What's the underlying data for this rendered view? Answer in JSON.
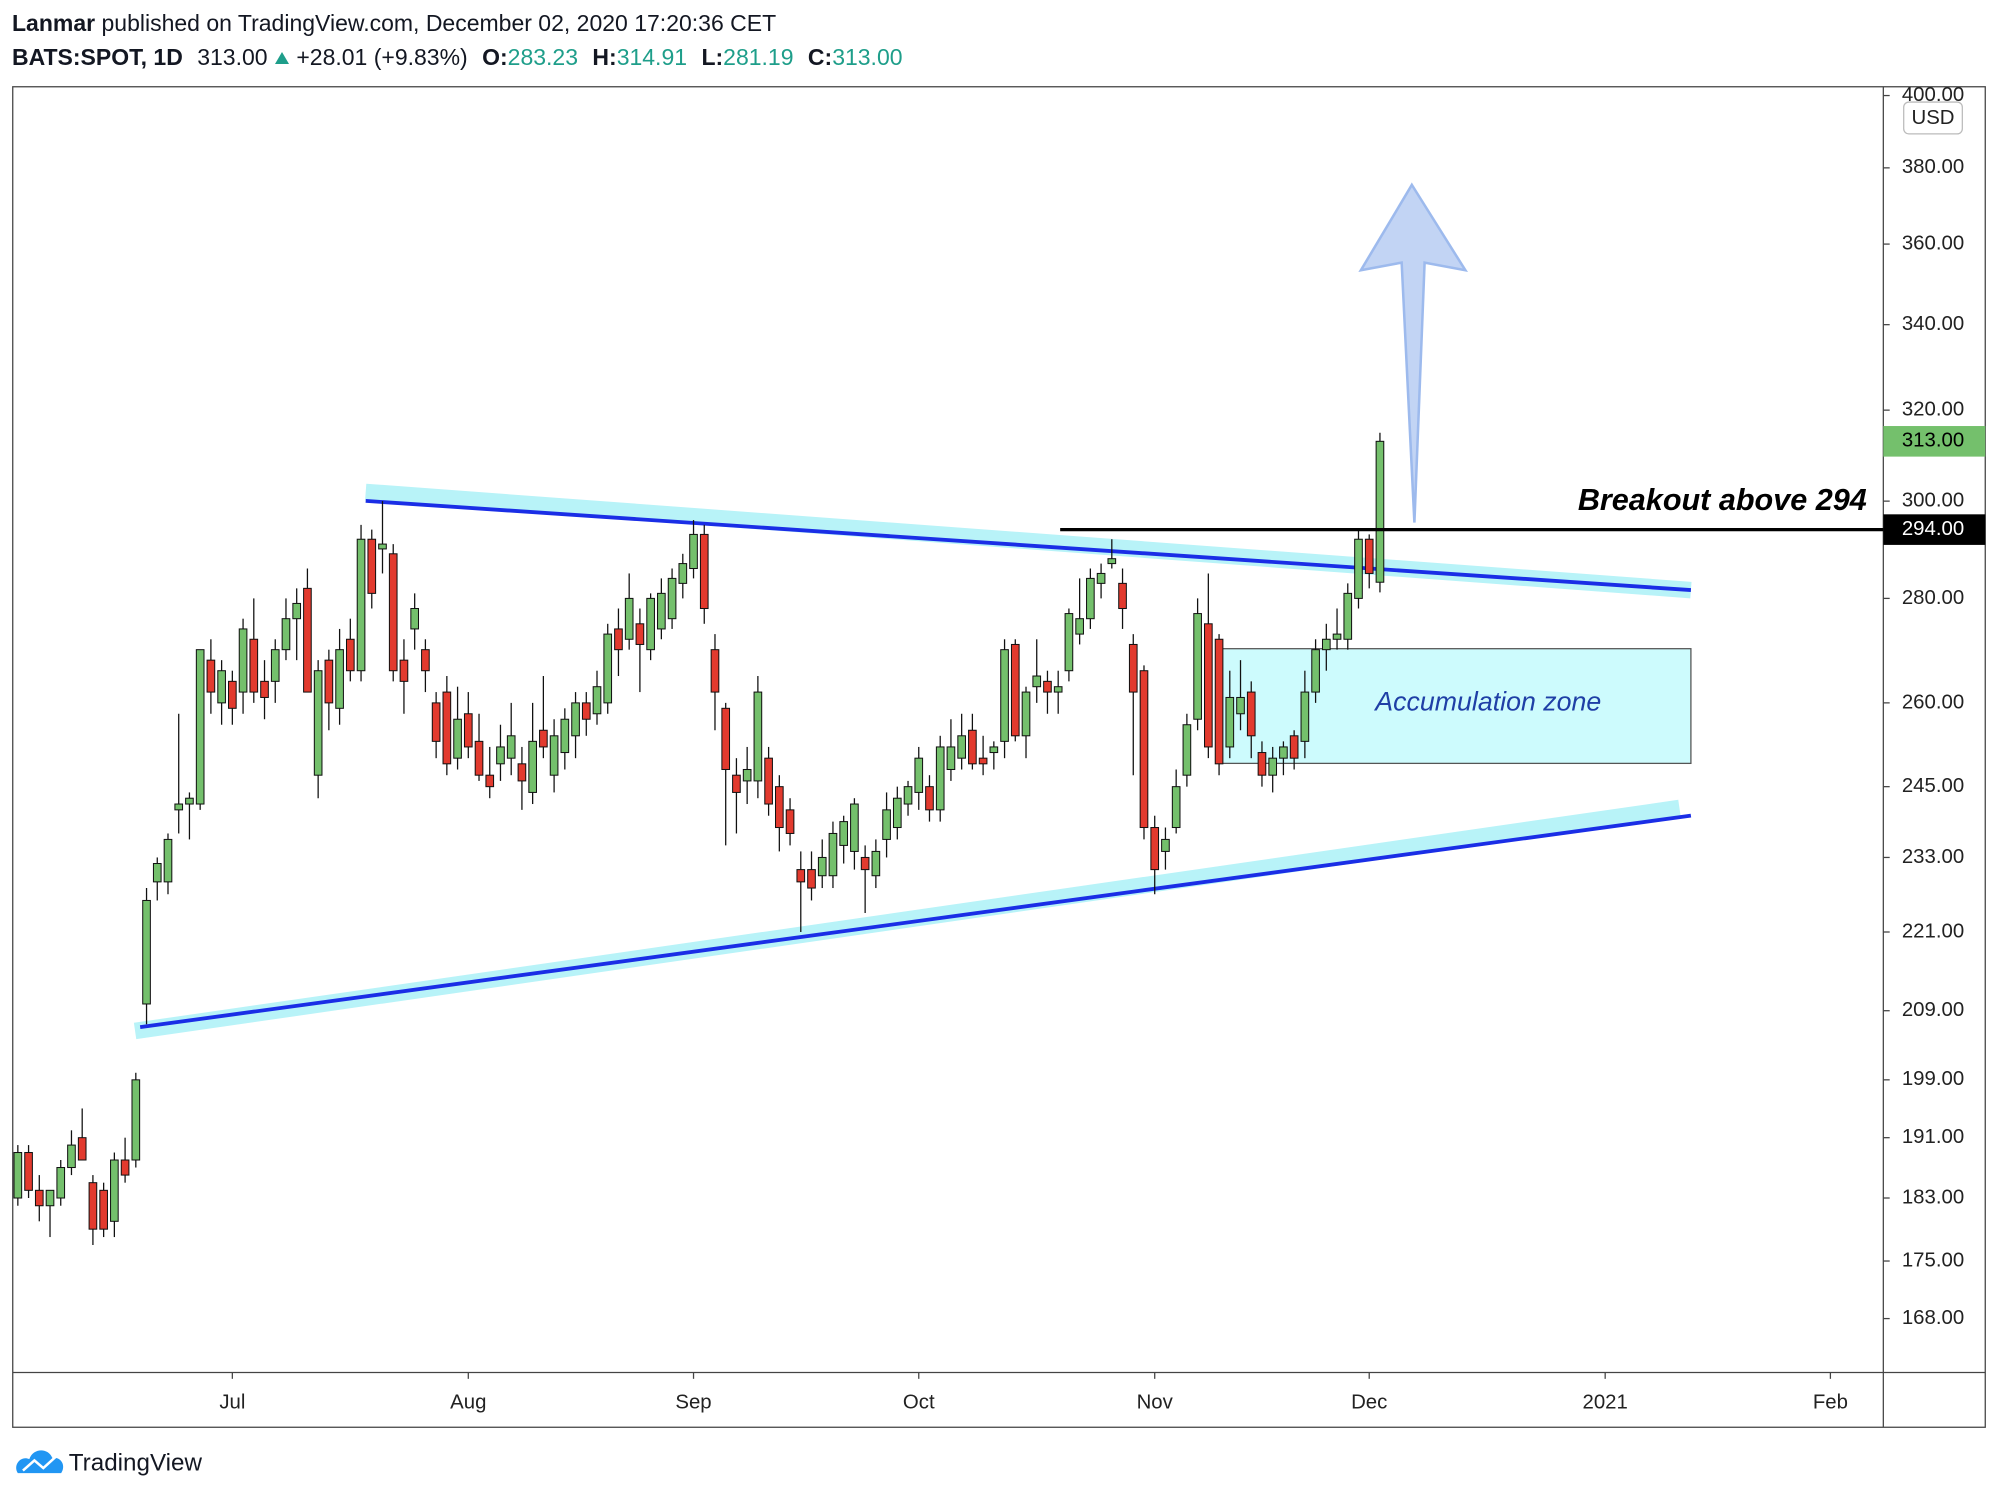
{
  "header": {
    "author": "Lanmar",
    "published": "published on TradingView.com, December 02, 2020 17:20:36 CET"
  },
  "chart_data": {
    "type": "candlestick",
    "symbol": "BATS:SPOT, 1D",
    "last": "313.00",
    "change": "+28.01 (+9.83%)",
    "ohlc_labels": [
      "O:",
      "H:",
      "L:",
      "C:"
    ],
    "ohlc_values": [
      "283.23",
      "314.91",
      "281.19",
      "313.00"
    ],
    "currency": "USD",
    "categories": [
      null,
      null,
      null,
      null,
      null,
      null,
      null,
      null,
      null,
      null,
      null,
      null,
      null,
      null,
      null,
      null,
      null,
      null,
      null,
      null,
      "Jul",
      null,
      null,
      null,
      null,
      null,
      null,
      null,
      null,
      null,
      null,
      null,
      null,
      null,
      null,
      null,
      null,
      null,
      null,
      null,
      null,
      null,
      "Aug",
      null,
      null,
      null,
      null,
      null,
      null,
      null,
      null,
      null,
      null,
      null,
      null,
      null,
      null,
      null,
      null,
      null,
      null,
      null,
      null,
      "Sep",
      null,
      null,
      null,
      null,
      null,
      null,
      null,
      null,
      null,
      null,
      null,
      null,
      null,
      null,
      null,
      null,
      null,
      null,
      null,
      null,
      "Oct",
      null,
      null,
      null,
      null,
      null,
      null,
      null,
      null,
      null,
      null,
      null,
      null,
      null,
      null,
      null,
      null,
      null,
      null,
      null,
      null,
      null,
      "Nov",
      null,
      null,
      null,
      null,
      null,
      null,
      null,
      null,
      null,
      null,
      null,
      null,
      null,
      null,
      null,
      null,
      null,
      null,
      null,
      "Dec",
      null,
      null,
      null,
      null,
      null,
      null,
      null,
      null,
      null,
      null,
      null,
      null,
      null,
      null,
      null,
      null,
      null,
      null,
      null,
      null,
      null,
      "2021",
      null,
      null,
      null,
      null,
      null,
      null,
      null,
      null,
      null,
      null,
      null,
      null,
      null,
      null,
      null,
      null,
      null,
      null,
      null,
      null,
      "Feb",
      null,
      null,
      null,
      null
    ],
    "open": [
      183,
      189,
      184,
      182,
      183,
      187,
      191,
      185,
      184,
      180,
      188,
      188,
      210,
      229,
      229,
      241,
      242,
      242,
      268,
      260,
      264,
      262,
      272,
      264,
      264,
      270,
      276,
      282,
      247,
      268,
      259,
      272,
      266,
      292,
      290,
      289,
      268,
      274,
      270,
      260,
      262,
      250,
      258,
      253,
      247,
      249,
      250,
      249,
      244,
      255,
      247,
      251,
      254,
      260,
      258,
      260,
      274,
      272,
      275,
      270,
      274,
      276,
      283,
      286,
      293,
      270,
      259,
      247,
      246,
      246,
      250,
      245,
      241,
      231,
      231,
      230,
      230,
      235,
      234,
      233,
      230,
      236,
      238,
      242,
      244,
      245,
      241,
      248,
      250,
      255,
      250,
      251,
      253,
      271,
      254,
      263,
      264,
      262,
      266,
      273,
      276,
      283,
      287,
      283,
      271,
      266,
      238,
      234,
      238,
      247,
      257,
      275,
      272,
      252,
      258,
      262,
      251,
      247,
      250,
      254,
      253,
      262,
      270,
      272,
      272,
      280,
      292,
      283.23,
      null,
      null,
      null,
      null,
      null,
      null,
      null,
      null,
      null,
      null,
      null,
      null,
      null,
      null,
      null,
      null,
      null,
      null,
      null,
      null,
      null,
      null,
      null,
      null,
      null,
      null,
      null,
      null,
      null,
      null,
      null,
      null,
      null,
      null,
      null,
      null,
      null,
      null,
      null,
      null,
      null,
      null,
      null,
      null,
      null,
      null
    ],
    "high": [
      190,
      190,
      186,
      184,
      188,
      192,
      195,
      186,
      185,
      189,
      191,
      200,
      228,
      233,
      237,
      258,
      244,
      270,
      272,
      268,
      266,
      276,
      280,
      268,
      272,
      280,
      282,
      286,
      268,
      270,
      274,
      276,
      295,
      294,
      300,
      291,
      272,
      281,
      272,
      262,
      265,
      263,
      262,
      258,
      252,
      256,
      260,
      252,
      260,
      265,
      257,
      259,
      262,
      262,
      266,
      275,
      278,
      285,
      278,
      281,
      284,
      286,
      289,
      296,
      295,
      273,
      260,
      250,
      252,
      265,
      252,
      247,
      243,
      234,
      234,
      236,
      239,
      240,
      243,
      235,
      236,
      244,
      245,
      246,
      252,
      247,
      254,
      257,
      258,
      258,
      254,
      253,
      272,
      272,
      263,
      272,
      266,
      266,
      278,
      284,
      286,
      287,
      292,
      286,
      273,
      267,
      240,
      238,
      248,
      258,
      280,
      285,
      273,
      266,
      268,
      264,
      253,
      252,
      253,
      255,
      266,
      272,
      275,
      278,
      283,
      294,
      293,
      314.91,
      null,
      null,
      null,
      null,
      null,
      null,
      null,
      null,
      null,
      null,
      null,
      null,
      null,
      null,
      null,
      null,
      null,
      null,
      null,
      null,
      null,
      null,
      null,
      null,
      null,
      null,
      null,
      null,
      null,
      null,
      null,
      null,
      null,
      null,
      null,
      null,
      null,
      null,
      null,
      null,
      null,
      null,
      null,
      null,
      null,
      null
    ],
    "low": [
      182,
      183,
      180,
      178,
      182,
      186,
      188,
      177,
      178,
      178,
      185,
      187,
      207,
      226,
      227,
      237,
      236,
      241,
      258,
      256,
      256,
      258,
      260,
      257,
      260,
      268,
      268,
      262,
      243,
      255,
      256,
      264,
      264,
      278,
      285,
      264,
      258,
      270,
      262,
      250,
      247,
      248,
      250,
      246,
      243,
      246,
      247,
      241,
      242,
      250,
      244,
      248,
      250,
      254,
      256,
      258,
      265,
      270,
      262,
      268,
      272,
      274,
      280,
      284,
      275,
      255,
      235,
      237,
      242,
      243,
      240,
      234,
      235,
      221,
      226,
      228,
      228,
      232,
      231,
      224,
      228,
      233,
      236,
      240,
      241,
      239,
      239,
      246,
      248,
      248,
      247,
      248,
      250,
      253,
      250,
      260,
      258,
      258,
      264,
      271,
      274,
      280,
      286,
      274,
      247,
      236,
      227,
      231,
      237,
      245,
      255,
      250,
      247,
      250,
      255,
      250,
      245,
      244,
      247,
      248,
      250,
      260,
      266,
      270,
      270,
      278,
      282,
      281.19,
      null,
      null,
      null,
      null,
      null,
      null,
      null,
      null,
      null,
      null,
      null,
      null,
      null,
      null,
      null,
      null,
      null,
      null,
      null,
      null,
      null,
      null,
      null,
      null,
      null,
      null,
      null,
      null,
      null,
      null,
      null,
      null,
      null,
      null,
      null,
      null,
      null,
      null,
      null,
      null,
      null,
      null,
      null,
      null,
      null,
      null
    ],
    "close": [
      189,
      184,
      182,
      184,
      187,
      190,
      188,
      179,
      179,
      188,
      186,
      199,
      226,
      232,
      236,
      242,
      243,
      270,
      262,
      266,
      259,
      274,
      262,
      261,
      270,
      276,
      279,
      262,
      266,
      260,
      270,
      266,
      292,
      281,
      291,
      266,
      264,
      278,
      266,
      253,
      249,
      257,
      252,
      247,
      245,
      252,
      254,
      246,
      253,
      252,
      254,
      257,
      260,
      257,
      263,
      273,
      270,
      280,
      271,
      280,
      281,
      284,
      287,
      293,
      278,
      262,
      248,
      244,
      248,
      262,
      242,
      238,
      237,
      229,
      228,
      233,
      237,
      239,
      242,
      231,
      234,
      241,
      243,
      245,
      250,
      241,
      252,
      252,
      254,
      249,
      249,
      252,
      270,
      254,
      262,
      265,
      262,
      263,
      277,
      276,
      284,
      285,
      288,
      278,
      262,
      238,
      231,
      236,
      245,
      256,
      277,
      252,
      249,
      261,
      261,
      254,
      247,
      250,
      252,
      250,
      262,
      270,
      272,
      273,
      281,
      292,
      285,
      313,
      null,
      null,
      null,
      null,
      null,
      null,
      null,
      null,
      null,
      null,
      null,
      null,
      null,
      null,
      null,
      null,
      null,
      null,
      null,
      null,
      null,
      null,
      null,
      null,
      null,
      null,
      null,
      null,
      null,
      null,
      null,
      null,
      null,
      null,
      null,
      null,
      null,
      null,
      null,
      null,
      null,
      null,
      null,
      null,
      null,
      null
    ],
    "up_color": "#74c06c",
    "down_color": "#e23a2e",
    "log_scale": true,
    "grid": false,
    "ylim": [
      161.7,
      402.5
    ],
    "yticks": [
      {
        "value": 168,
        "label": "168.00"
      },
      {
        "value": 175,
        "label": "175.00"
      },
      {
        "value": 183,
        "label": "183.00"
      },
      {
        "value": 191,
        "label": "191.00"
      },
      {
        "value": 199,
        "label": "199.00"
      },
      {
        "value": 209,
        "label": "209.00"
      },
      {
        "value": 221,
        "label": "221.00"
      },
      {
        "value": 233,
        "label": "233.00"
      },
      {
        "value": 245,
        "label": "245.00"
      },
      {
        "value": 260,
        "label": "260.00"
      },
      {
        "value": 280,
        "label": "280.00"
      },
      {
        "value": 300,
        "label": "300.00"
      },
      {
        "value": 320,
        "label": "320.00"
      },
      {
        "value": 340,
        "label": "340.00"
      },
      {
        "value": 360,
        "label": "360.00"
      },
      {
        "value": 380,
        "label": "380.00"
      },
      {
        "value": 400,
        "label": "400.00"
      }
    ],
    "last_price": {
      "value": 313,
      "label": "313.00"
    },
    "level": {
      "value": 294,
      "label": "294.00"
    },
    "annotations": [
      "Breakout above 294",
      "Accumulation zone"
    ]
  },
  "footer": {
    "brand": "TradingView"
  }
}
